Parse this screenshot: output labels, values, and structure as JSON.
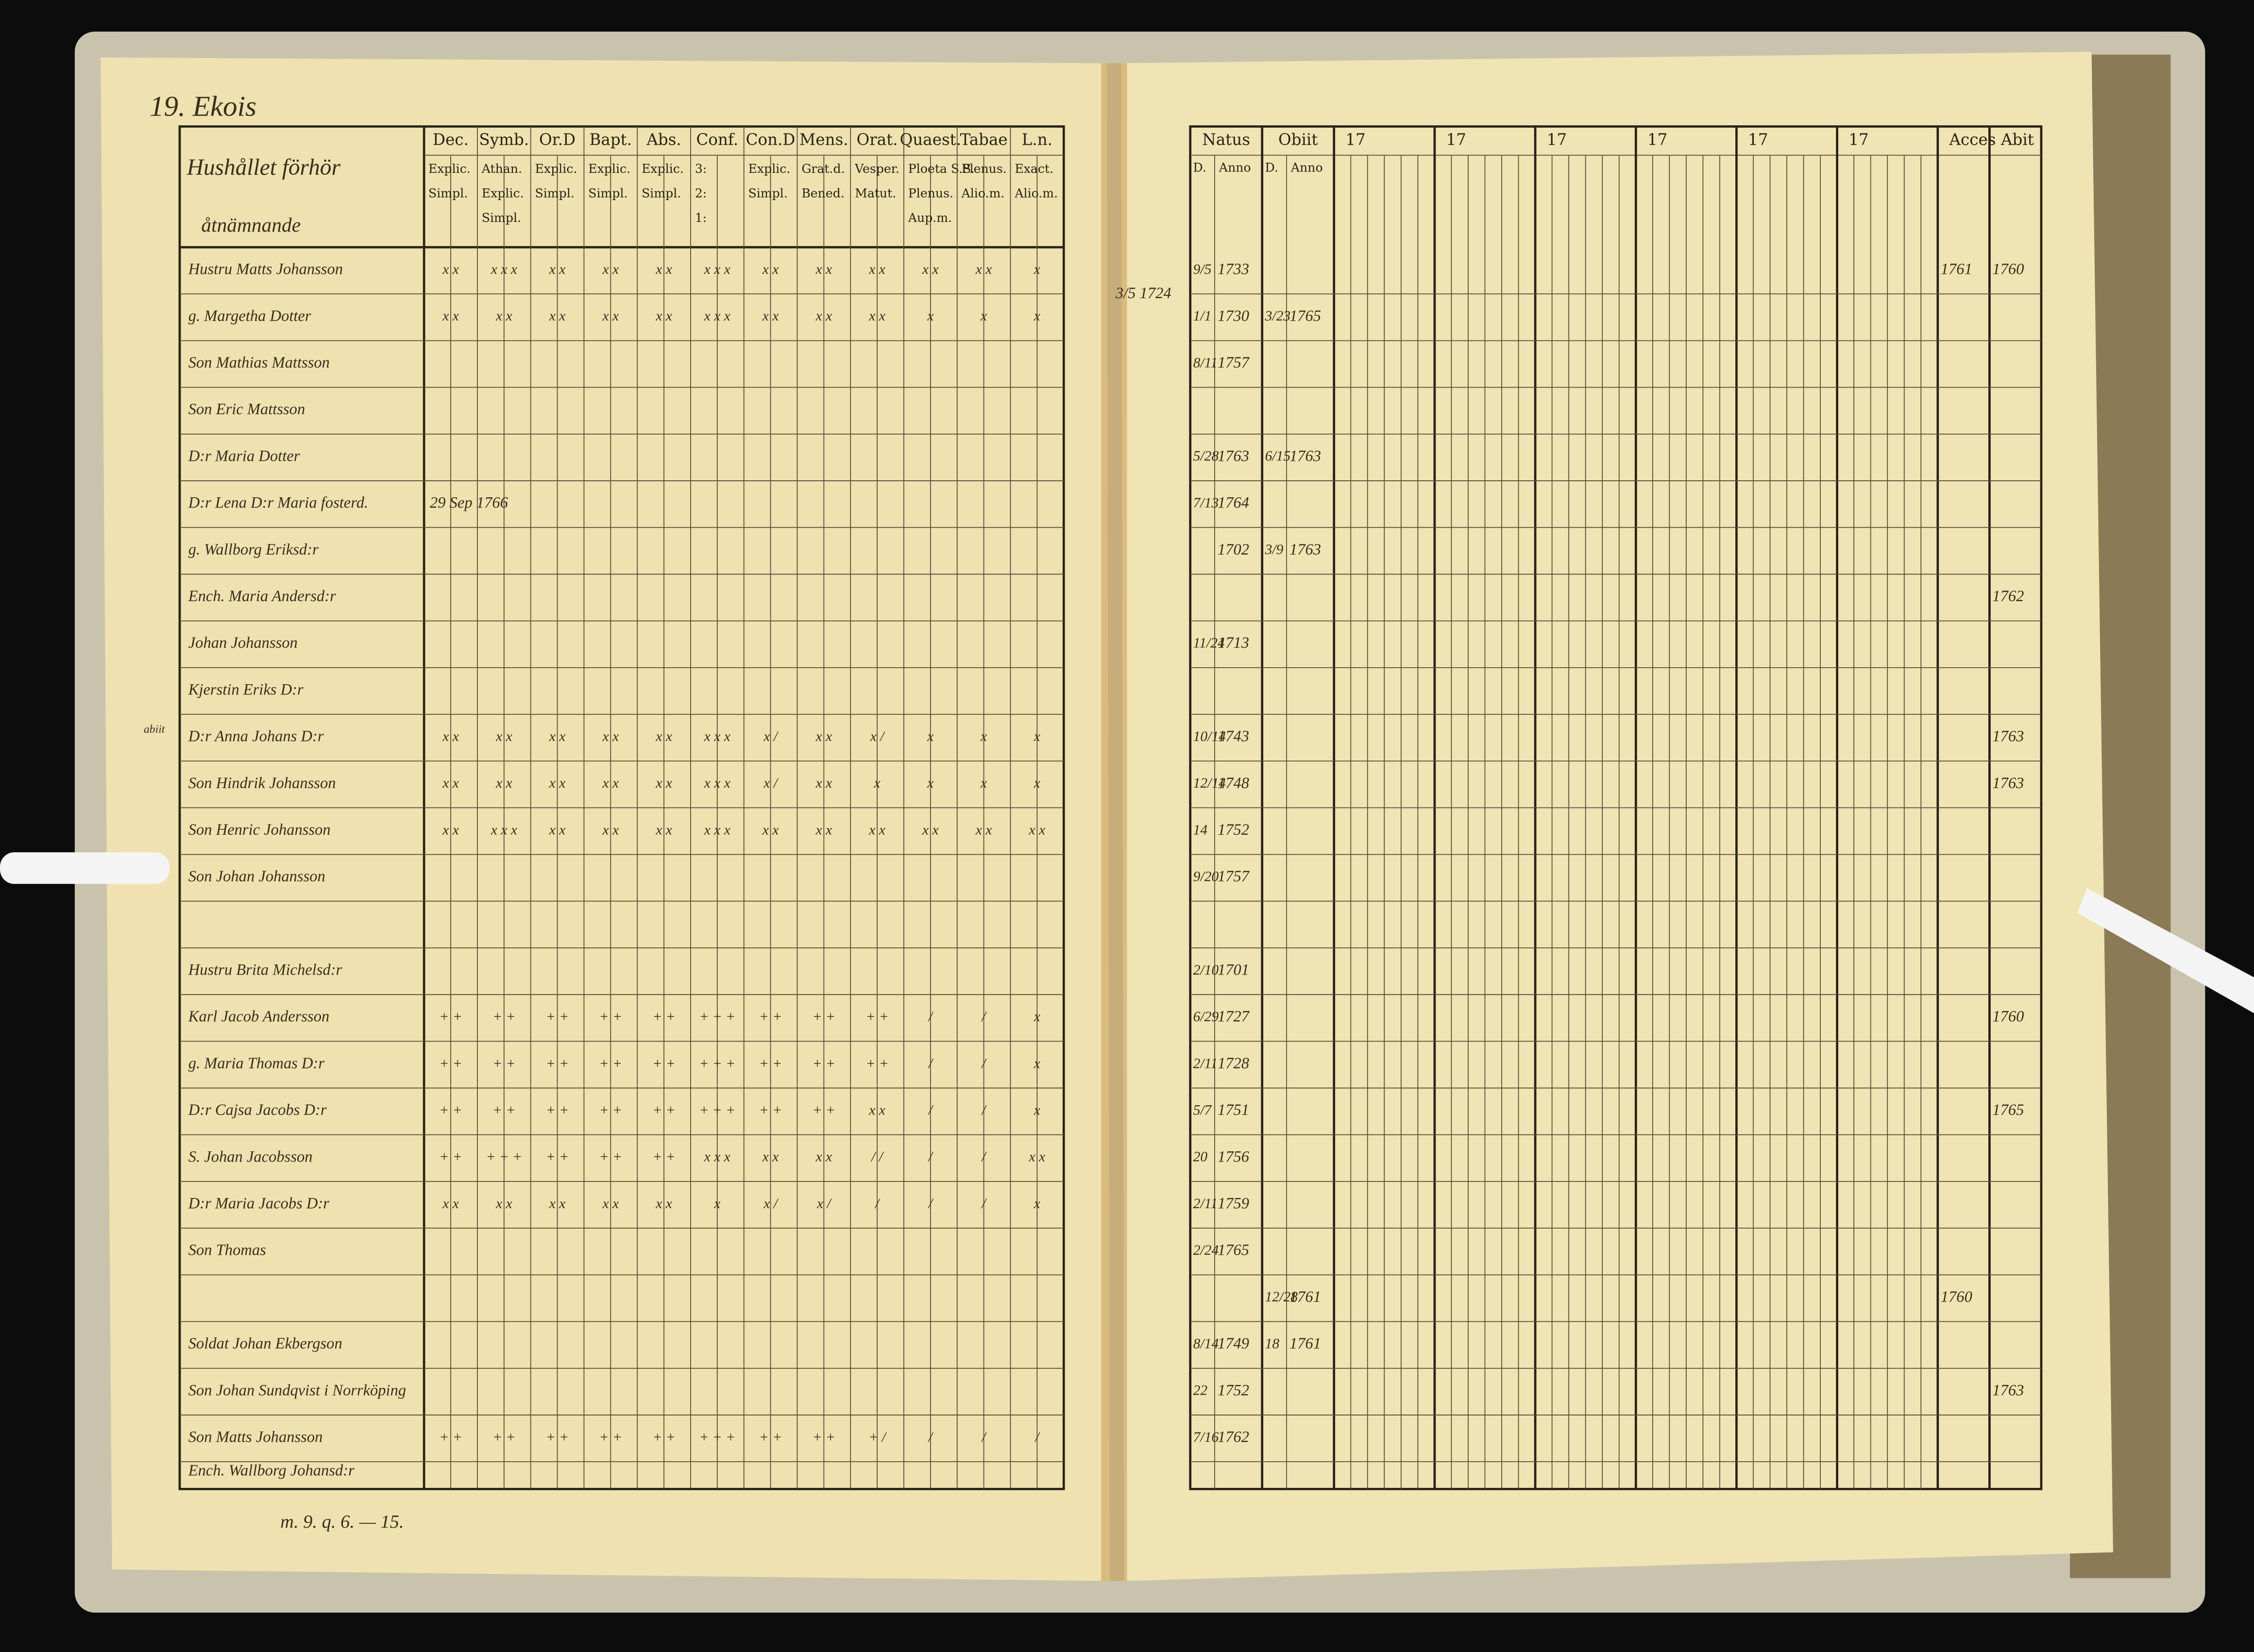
{
  "left_page": {
    "page_label": "19. Ekois",
    "heading": [
      "Hushållet förhör",
      "åtnämnande"
    ],
    "columns": [
      {
        "title": "Dec.",
        "sub": [
          "Explic.",
          "Simpl."
        ]
      },
      {
        "title": "Symb.",
        "sub": [
          "Athan.",
          "Explic.",
          "Simpl."
        ]
      },
      {
        "title": "Or.D",
        "sub": [
          "Explic.",
          "Simpl."
        ]
      },
      {
        "title": "Bapt.",
        "sub": [
          "Explic.",
          "Simpl."
        ]
      },
      {
        "title": "Abs.",
        "sub": [
          "Explic.",
          "Simpl."
        ]
      },
      {
        "title": "Conf.",
        "sub": [
          "3:",
          "2:",
          "1:"
        ]
      },
      {
        "title": "Con.D",
        "sub": [
          "Explic.",
          "Simpl."
        ]
      },
      {
        "title": "Mens.",
        "sub": [
          "Grat.d.",
          "Bened."
        ]
      },
      {
        "title": "Orat.",
        "sub": [
          "Vesper.",
          "Matut."
        ]
      },
      {
        "title": "Quaest.",
        "sub": [
          "Ploeta S.S.",
          "Plenus.",
          "Aup.m."
        ]
      },
      {
        "title": "Tabae",
        "sub": [
          "Plenus.",
          "Alio.m."
        ]
      },
      {
        "title": "L.n.",
        "sub": [
          "Exact.",
          "Alio.m."
        ]
      }
    ],
    "rows": [
      {
        "name": "Hustru Matts Johansson",
        "marks": [
          "x x",
          "x x x",
          "x x",
          "x x",
          "x x",
          "x x x",
          "x x",
          "x x",
          "x x",
          "x x",
          "x x",
          "x"
        ]
      },
      {
        "name": "g. Margetha Dotter",
        "marks": [
          "x x",
          "x x",
          "x x",
          "x x",
          "x x",
          "x x x",
          "x x",
          "x x",
          "x x",
          "x",
          "x",
          "x"
        ]
      },
      {
        "name": "Son Mathias Mattsson"
      },
      {
        "name": "Son Eric Mattsson"
      },
      {
        "name": "D:r Maria Dotter"
      },
      {
        "name": "D:r Lena D:r Maria fosterd.",
        "note": "29 Sep 1766"
      },
      {
        "name": "g. Wallborg Eriksd:r"
      },
      {
        "name": "Ench. Maria Andersd:r"
      },
      {
        "name": "Johan Johansson"
      },
      {
        "name": "Kjerstin Eriks D:r"
      },
      {
        "name": "D:r Anna Johans D:r",
        "marks": [
          "x x",
          "x x",
          "x x",
          "x x",
          "x x",
          "x x x",
          "x /",
          "x x",
          "x /",
          "x",
          "x",
          "x"
        ]
      },
      {
        "name": "Son Hindrik Johansson",
        "marks": [
          "x x",
          "x x",
          "x x",
          "x x",
          "x x",
          "x x x",
          "x /",
          "x x",
          "x",
          "x",
          "x",
          "x"
        ]
      },
      {
        "name": "Son Henric Johansson",
        "marks": [
          "x x",
          "x x x",
          "x x",
          "x x",
          "x x",
          "x x x",
          "x x",
          "x x",
          "x x",
          "x x",
          "x x",
          "x x"
        ]
      },
      {
        "name": "Son Johan Johansson"
      },
      {},
      {
        "name": "Hustru Brita Michelsd:r"
      },
      {
        "name": "Karl Jacob Andersson",
        "marks": [
          "+ +",
          "+ +",
          "+ +",
          "+ +",
          "+ +",
          "+ + +",
          "+ +",
          "+ +",
          "+ +",
          "/",
          "/",
          "x"
        ]
      },
      {
        "name": "g. Maria Thomas D:r",
        "marks": [
          "+ +",
          "+ +",
          "+ +",
          "+ +",
          "+ +",
          "+ + +",
          "+ +",
          "+ +",
          "+ +",
          "/",
          "/",
          "x"
        ]
      },
      {
        "name": "D:r Cajsa Jacobs D:r",
        "marks": [
          "+ +",
          "+ +",
          "+ +",
          "+ +",
          "+ +",
          "+ + +",
          "+ +",
          "+ +",
          "x x",
          "/",
          "/",
          "x"
        ]
      },
      {
        "name": "S. Johan Jacobsson",
        "marks": [
          "+ +",
          "+ + +",
          "+ +",
          "+ +",
          "+ +",
          "x x x",
          "x x",
          "x x",
          "/ /",
          "/",
          "/",
          "x x"
        ]
      },
      {
        "name": "D:r Maria Jacobs D:r",
        "marks": [
          "x x",
          "x x",
          "x x",
          "x x",
          "x x",
          "x",
          "x /",
          "x /",
          "/",
          "/",
          "/",
          "x"
        ]
      },
      {
        "name": "Son Thomas"
      },
      {},
      {
        "name": "Soldat Johan Ekbergson"
      },
      {
        "name": "Son Johan Sundqvist i Norrköping"
      },
      {
        "name": "Son Matts Johansson",
        "marks": [
          "+ +",
          "+ +",
          "+ +",
          "+ +",
          "+ +",
          "+ + +",
          "+ +",
          "+ +",
          "+ /",
          "/",
          "/",
          "/"
        ]
      }
    ],
    "footer_row": "Ench. Wallborg Johansd:r",
    "footer_note": "m. 9. q. 6. — 15.",
    "margin_notes": [
      "abiit",
      "3/5 1724"
    ]
  },
  "right_page": {
    "columns": [
      {
        "title": "Natus",
        "sub": [
          "D.",
          "Anno"
        ]
      },
      {
        "title": "Obiit",
        "sub": [
          "D.",
          "Anno"
        ]
      },
      {
        "title": "17"
      },
      {
        "title": "17"
      },
      {
        "title": "17"
      },
      {
        "title": "17"
      },
      {
        "title": "17"
      },
      {
        "title": "17"
      },
      {
        "title": "Acces"
      },
      {
        "title": "Abit"
      }
    ],
    "rows": [
      {
        "natus_day": "9/5",
        "natus_year": "1733",
        "accessit": "1761",
        "abiit": "1760"
      },
      {
        "natus_day": "1/1",
        "natus_year": "1730",
        "obiit_day": "3/23",
        "obiit_year": "1765"
      },
      {
        "natus_day": "8/11",
        "natus_year": "1757"
      },
      {},
      {
        "natus_day": "5/28",
        "natus_year": "1763",
        "obiit_day": "6/15",
        "obiit_year": "1763"
      },
      {
        "natus_day": "7/13",
        "natus_year": "1764"
      },
      {
        "natus_year": "1702",
        "obiit_day": "3/9",
        "obiit_year": "1763"
      },
      {
        "abiit": "1762"
      },
      {
        "natus_day": "11/24",
        "natus_year": "1713"
      },
      {},
      {
        "natus_day": "10/14",
        "natus_year": "1743",
        "abiit": "1763"
      },
      {
        "natus_day": "12/14",
        "natus_year": "1748",
        "abiit": "1763"
      },
      {
        "natus_day": "14",
        "natus_year": "1752"
      },
      {
        "natus_day": "9/20",
        "natus_year": "1757"
      },
      {},
      {
        "natus_day": "2/10",
        "natus_year": "1701"
      },
      {
        "natus_day": "6/29",
        "natus_year": "1727",
        "abiit": "1760"
      },
      {
        "natus_day": "2/11",
        "natus_year": "1728"
      },
      {
        "natus_day": "5/7",
        "natus_year": "1751",
        "abiit": "1765"
      },
      {
        "natus_day": "20",
        "natus_year": "1756"
      },
      {
        "natus_day": "2/11",
        "natus_year": "1759"
      },
      {
        "natus_day": "2/24",
        "natus_year": "1765"
      },
      {
        "obiit_day": "12/28",
        "obiit_year": "1761",
        "accessit": "1760"
      },
      {
        "natus_day": "8/14",
        "natus_year": "1749",
        "obiit_day": "18",
        "obiit_year": "1761"
      },
      {
        "natus_day": "22",
        "natus_year": "1752",
        "abiit": "1763"
      },
      {
        "natus_day": "7/16",
        "natus_year": "1762"
      }
    ]
  }
}
